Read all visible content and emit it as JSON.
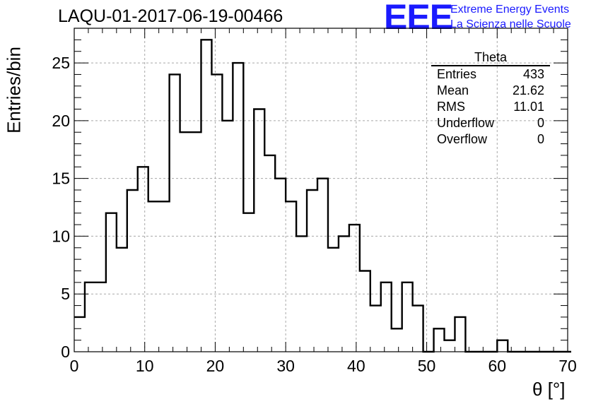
{
  "header": {
    "title": "LAQU-01-2017-06-19-00466"
  },
  "logo": {
    "mark": "EEE",
    "line1": "Extreme Energy Events",
    "line2": "La Scienza nelle Scuole",
    "color": "#1a1aff"
  },
  "stats_box": {
    "title": "Theta",
    "rows": [
      {
        "label": "Entries",
        "value": "433"
      },
      {
        "label": "Mean",
        "value": "21.62"
      },
      {
        "label": "RMS",
        "value": "11.01"
      },
      {
        "label": "Underflow",
        "value": "0"
      },
      {
        "label": "Overflow",
        "value": "0"
      }
    ]
  },
  "chart_data": {
    "type": "histogram",
    "xlabel": "θ [°]",
    "ylabel": "Entries/bin",
    "xlim": [
      0,
      70
    ],
    "ylim": [
      0,
      28
    ],
    "grid": true,
    "bin_width": 1.5,
    "x_ticks": [
      0,
      10,
      20,
      30,
      40,
      50,
      60,
      70
    ],
    "y_ticks": [
      0,
      5,
      10,
      15,
      20,
      25
    ],
    "bin_edges_start": 0,
    "values": [
      3,
      6,
      6,
      12,
      9,
      14,
      16,
      13,
      13,
      24,
      19,
      19,
      27,
      24,
      20,
      25,
      12,
      21,
      17,
      15,
      13,
      10,
      14,
      15,
      9,
      10,
      11,
      7,
      4,
      6,
      2,
      6,
      4,
      0,
      2,
      1,
      3,
      0,
      0,
      0,
      1,
      0,
      0,
      0,
      0,
      0,
      0
    ]
  }
}
